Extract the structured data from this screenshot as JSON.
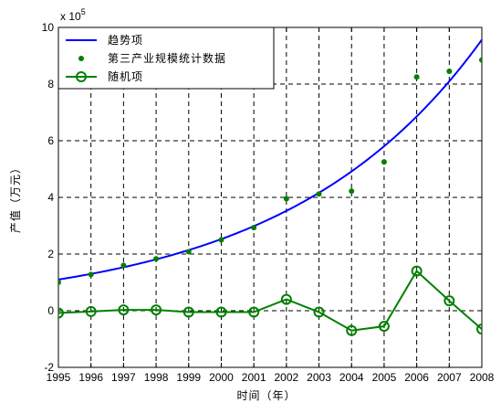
{
  "chart_data": {
    "type": "line",
    "x": [
      1995,
      1996,
      1997,
      1998,
      1999,
      2000,
      2001,
      2002,
      2003,
      2004,
      2005,
      2006,
      2007,
      2008
    ],
    "xlabel": "时间（年）",
    "ylabel": "产值（万元）",
    "y_multiplier": "x 10",
    "y_multiplier_exp": "5",
    "xlim": [
      1995,
      2008
    ],
    "ylim": [
      -200000,
      1000000
    ],
    "xticks": [
      1995,
      1996,
      1997,
      1998,
      1999,
      2000,
      2001,
      2002,
      2003,
      2004,
      2005,
      2006,
      2007,
      2008
    ],
    "yticks": [
      -2,
      0,
      2,
      4,
      6,
      8,
      10
    ],
    "grid": true,
    "legend_position": "top-left",
    "series": [
      {
        "name": "趋势项",
        "style": "line",
        "color": "#0000ff",
        "trend_params": {
          "a": 110000,
          "growth": 1.181
        }
      },
      {
        "name": "第三产业规模统计数据",
        "style": "dots",
        "color": "#008000",
        "values": [
          100000,
          128000,
          160000,
          183000,
          208000,
          250000,
          293000,
          395000,
          412000,
          422000,
          525000,
          825000,
          845000,
          885000
        ]
      },
      {
        "name": "随机项",
        "style": "line-circles",
        "color": "#008000",
        "values": [
          -8000,
          -3000,
          3000,
          3000,
          -5000,
          -5000,
          -5000,
          40000,
          -5000,
          -70000,
          -55000,
          140000,
          35000,
          -65000
        ]
      }
    ]
  }
}
